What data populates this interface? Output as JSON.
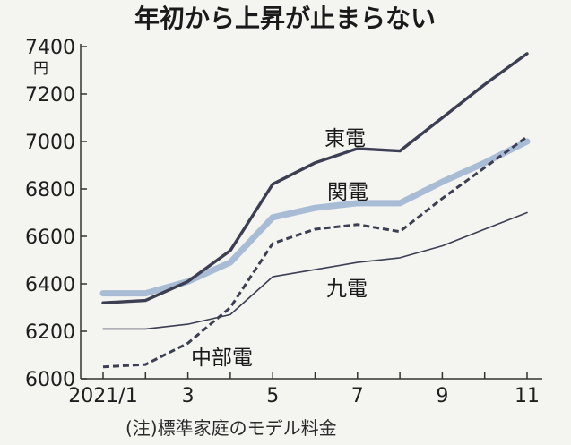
{
  "chart_data": {
    "type": "line",
    "title": "年初から上昇が止まらない",
    "unit": "円",
    "note": "(注)標準家庭のモデル料金",
    "x": [
      1,
      2,
      3,
      4,
      5,
      6,
      7,
      8,
      9,
      10,
      11
    ],
    "x_tick_labels": [
      {
        "x": 1,
        "label": "2021/1"
      },
      {
        "x": 3,
        "label": "3"
      },
      {
        "x": 5,
        "label": "5"
      },
      {
        "x": 7,
        "label": "7"
      },
      {
        "x": 9,
        "label": "9"
      },
      {
        "x": 11,
        "label": "11"
      }
    ],
    "ylim": [
      6000,
      7400
    ],
    "yticks": [
      6000,
      6200,
      6400,
      6600,
      6800,
      7000,
      7200,
      7400
    ],
    "series": [
      {
        "name": "東電",
        "color": "#3c3f52",
        "style": "solid-thick",
        "values": [
          6320,
          6330,
          6410,
          6540,
          6820,
          6910,
          6970,
          6960,
          7100,
          7240,
          7370
        ]
      },
      {
        "name": "関電",
        "color": "#a9bcd6",
        "style": "solid-wide",
        "values": [
          6360,
          6360,
          6410,
          6490,
          6680,
          6720,
          6740,
          6740,
          6830,
          6910,
          7000
        ]
      },
      {
        "name": "九電",
        "color": "#3c3f52",
        "style": "solid-thin",
        "values": [
          6210,
          6210,
          6230,
          6270,
          6430,
          6460,
          6490,
          6510,
          6560,
          6630,
          6700
        ]
      },
      {
        "name": "中部電",
        "color": "#3c3f52",
        "style": "dashed",
        "values": [
          6050,
          6060,
          6150,
          6300,
          6570,
          6630,
          6650,
          6620,
          6760,
          6890,
          7020
        ]
      }
    ]
  }
}
